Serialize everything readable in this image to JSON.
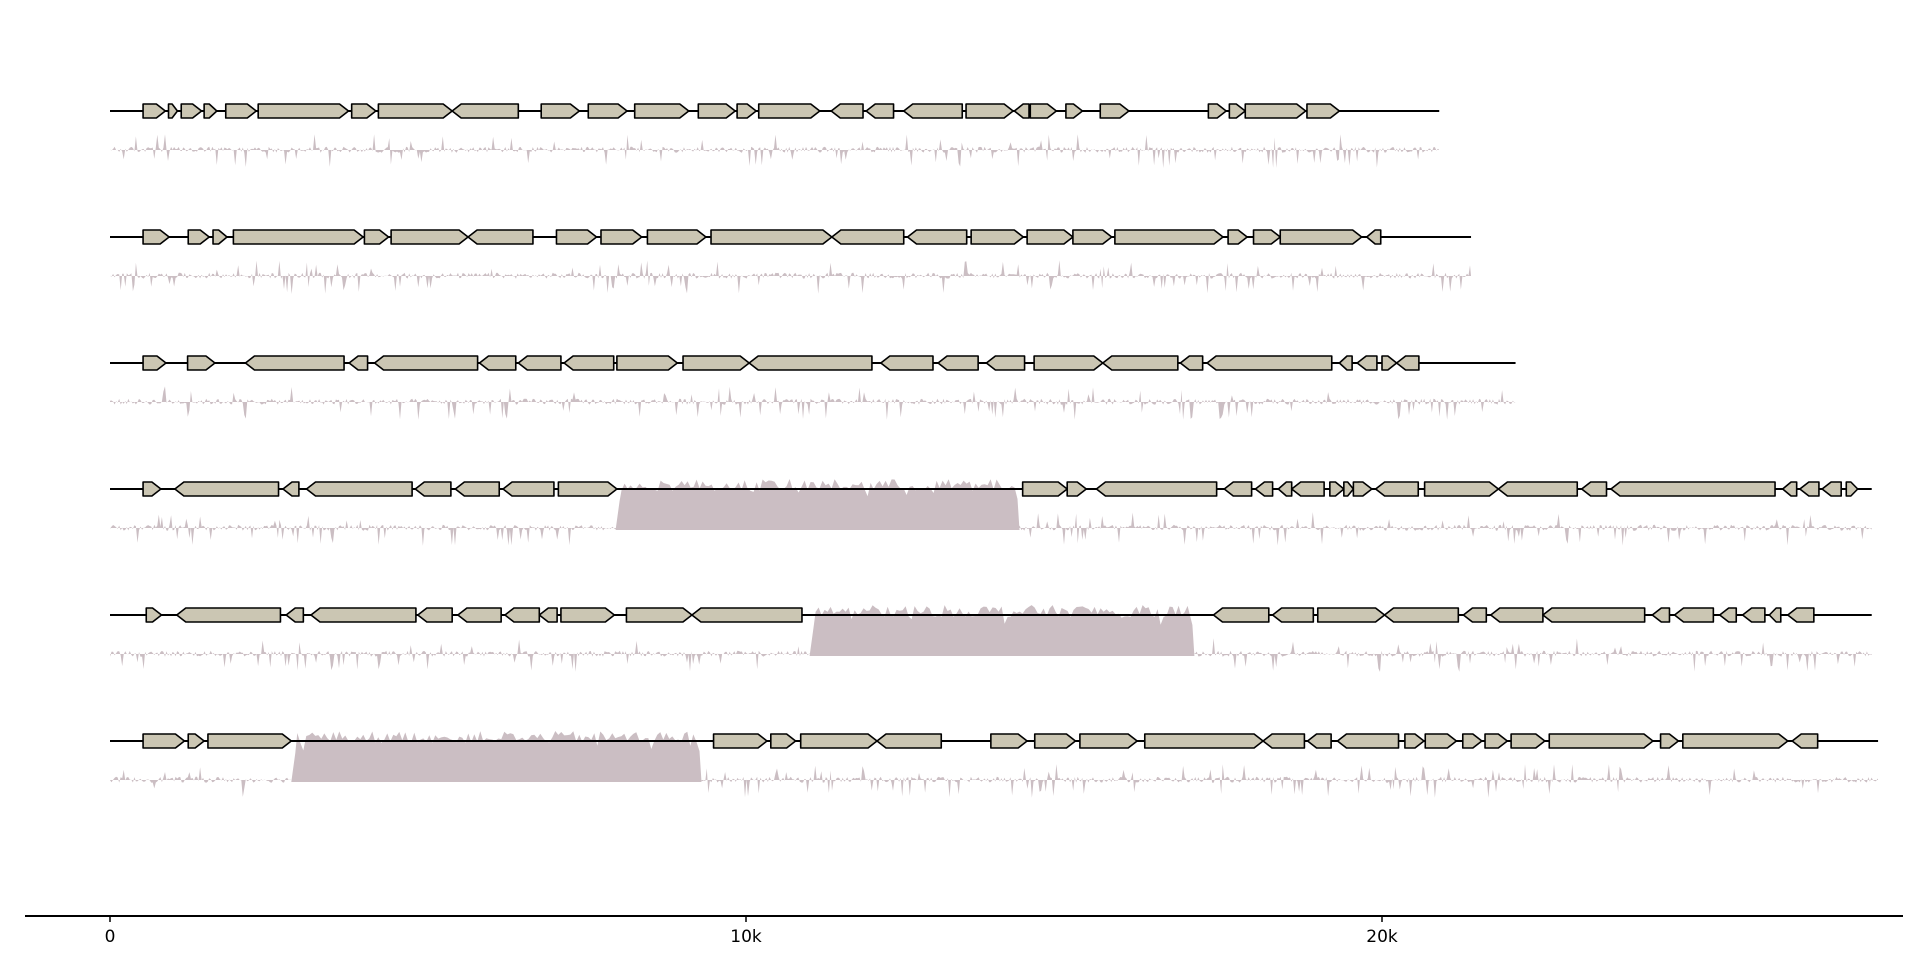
{
  "chart_data": {
    "type": "genome-map",
    "title": "",
    "xlabel": "",
    "ylabel": "",
    "xlim": [
      0,
      28500
    ],
    "x_ticks": [
      {
        "value": 0,
        "label": "0"
      },
      {
        "value": 10000,
        "label": "10k"
      },
      {
        "value": 20000,
        "label": "20k"
      }
    ],
    "colors": {
      "gene_fill": "#cbc6b3",
      "gene_stroke": "#000000",
      "track_fill": "#cbbec3",
      "axis": "#000000"
    },
    "records": [
      {
        "length": 20900,
        "genes": [
          [
            520,
            870,
            1
          ],
          [
            920,
            1060,
            1
          ],
          [
            1120,
            1440,
            1
          ],
          [
            1480,
            1680,
            1
          ],
          [
            1820,
            2300,
            1
          ],
          [
            2330,
            3750,
            1
          ],
          [
            3800,
            4180,
            1
          ],
          [
            4220,
            5380,
            1
          ],
          [
            5380,
            6420,
            -1
          ],
          [
            6780,
            7380,
            1
          ],
          [
            7520,
            8130,
            1
          ],
          [
            8250,
            9100,
            1
          ],
          [
            9250,
            9830,
            1
          ],
          [
            9860,
            10160,
            1
          ],
          [
            10200,
            11160,
            1
          ],
          [
            11340,
            11840,
            -1
          ],
          [
            11890,
            12320,
            -1
          ],
          [
            12480,
            13400,
            -1
          ],
          [
            13460,
            14200,
            1
          ],
          [
            14220,
            14450,
            -1
          ],
          [
            14470,
            14880,
            1
          ],
          [
            15030,
            15290,
            1
          ],
          [
            15570,
            16020,
            1
          ],
          [
            17270,
            17550,
            1
          ],
          [
            17600,
            17850,
            1
          ],
          [
            17850,
            18800,
            1
          ],
          [
            18820,
            19330,
            1
          ]
        ],
        "deep_blocks": []
      },
      {
        "length": 21400,
        "genes": [
          [
            520,
            930,
            1
          ],
          [
            1230,
            1560,
            1
          ],
          [
            1620,
            1840,
            1
          ],
          [
            1940,
            3980,
            1
          ],
          [
            4000,
            4380,
            1
          ],
          [
            4420,
            5630,
            1
          ],
          [
            5630,
            6650,
            -1
          ],
          [
            7020,
            7650,
            1
          ],
          [
            7720,
            8360,
            1
          ],
          [
            8450,
            9370,
            1
          ],
          [
            9450,
            11350,
            1
          ],
          [
            11350,
            12480,
            -1
          ],
          [
            12540,
            13470,
            -1
          ],
          [
            13540,
            14360,
            1
          ],
          [
            14420,
            15140,
            1
          ],
          [
            15140,
            15750,
            1
          ],
          [
            15800,
            17500,
            1
          ],
          [
            17580,
            17880,
            1
          ],
          [
            17980,
            18400,
            1
          ],
          [
            18400,
            19680,
            1
          ],
          [
            19760,
            19980,
            -1
          ]
        ],
        "deep_blocks": []
      },
      {
        "length": 22100,
        "genes": [
          [
            520,
            880,
            1
          ],
          [
            1220,
            1650,
            1
          ],
          [
            2130,
            3680,
            -1
          ],
          [
            3760,
            4050,
            -1
          ],
          [
            4160,
            5780,
            -1
          ],
          [
            5810,
            6380,
            -1
          ],
          [
            6420,
            7090,
            -1
          ],
          [
            7140,
            7920,
            -1
          ],
          [
            7970,
            8920,
            1
          ],
          [
            9010,
            10050,
            1
          ],
          [
            10050,
            11980,
            -1
          ],
          [
            12120,
            12940,
            -1
          ],
          [
            13020,
            13650,
            -1
          ],
          [
            13780,
            14380,
            -1
          ],
          [
            14530,
            15610,
            1
          ],
          [
            15610,
            16790,
            -1
          ],
          [
            16830,
            17180,
            -1
          ],
          [
            17250,
            19210,
            -1
          ],
          [
            19330,
            19530,
            -1
          ],
          [
            19610,
            19920,
            -1
          ],
          [
            20000,
            20230,
            1
          ],
          [
            20230,
            20580,
            -1
          ]
        ],
        "deep_blocks": []
      },
      {
        "length": 27700,
        "genes": [
          [
            520,
            800,
            1
          ],
          [
            1020,
            2650,
            -1
          ],
          [
            2720,
            2970,
            -1
          ],
          [
            3090,
            4750,
            -1
          ],
          [
            4800,
            5360,
            -1
          ],
          [
            5430,
            6120,
            -1
          ],
          [
            6180,
            6980,
            -1
          ],
          [
            7050,
            7970,
            1
          ],
          [
            14350,
            15050,
            1
          ],
          [
            15050,
            15350,
            1
          ],
          [
            15510,
            17400,
            -1
          ],
          [
            17520,
            17950,
            -1
          ],
          [
            18010,
            18280,
            -1
          ],
          [
            18370,
            18580,
            -1
          ],
          [
            18580,
            19090,
            -1
          ],
          [
            19180,
            19400,
            1
          ],
          [
            19400,
            19550,
            1
          ],
          [
            19550,
            19840,
            1
          ],
          [
            19900,
            20570,
            -1
          ],
          [
            20670,
            21830,
            1
          ],
          [
            21830,
            23070,
            -1
          ],
          [
            23140,
            23530,
            -1
          ],
          [
            23600,
            26180,
            -1
          ],
          [
            26300,
            26520,
            -1
          ],
          [
            26570,
            26870,
            -1
          ],
          [
            26920,
            27220,
            -1
          ],
          [
            27300,
            27480,
            1
          ]
        ],
        "deep_blocks": [
          [
            7950,
            14300
          ]
        ]
      },
      {
        "length": 27700,
        "genes": [
          [
            570,
            810,
            1
          ],
          [
            1050,
            2680,
            -1
          ],
          [
            2770,
            3040,
            -1
          ],
          [
            3160,
            4810,
            -1
          ],
          [
            4840,
            5380,
            -1
          ],
          [
            5470,
            6150,
            -1
          ],
          [
            6210,
            6750,
            -1
          ],
          [
            6750,
            7030,
            -1
          ],
          [
            7090,
            7930,
            1
          ],
          [
            8120,
            9150,
            1
          ],
          [
            9150,
            10880,
            -1
          ],
          [
            17350,
            18220,
            -1
          ],
          [
            18280,
            18920,
            -1
          ],
          [
            18990,
            20040,
            1
          ],
          [
            20040,
            21200,
            -1
          ],
          [
            21280,
            21640,
            -1
          ],
          [
            21710,
            22530,
            -1
          ],
          [
            22530,
            24130,
            -1
          ],
          [
            24250,
            24520,
            -1
          ],
          [
            24600,
            25210,
            -1
          ],
          [
            25310,
            25570,
            -1
          ],
          [
            25670,
            26020,
            -1
          ],
          [
            26090,
            26270,
            -1
          ],
          [
            26380,
            26790,
            -1
          ]
        ],
        "deep_blocks": [
          [
            11000,
            17050
          ]
        ]
      },
      {
        "length": 27800,
        "genes": [
          [
            520,
            1170,
            1
          ],
          [
            1230,
            1480,
            1
          ],
          [
            1540,
            2850,
            1
          ],
          [
            9490,
            10330,
            1
          ],
          [
            10390,
            10780,
            1
          ],
          [
            10860,
            12060,
            1
          ],
          [
            12060,
            13070,
            -1
          ],
          [
            13850,
            14420,
            1
          ],
          [
            14540,
            15180,
            1
          ],
          [
            15250,
            16150,
            1
          ],
          [
            16270,
            18130,
            1
          ],
          [
            18130,
            18780,
            -1
          ],
          [
            18830,
            19200,
            -1
          ],
          [
            19300,
            20260,
            -1
          ],
          [
            20360,
            20660,
            1
          ],
          [
            20680,
            21170,
            1
          ],
          [
            21270,
            21570,
            1
          ],
          [
            21620,
            21970,
            1
          ],
          [
            22030,
            22560,
            1
          ],
          [
            22630,
            24260,
            1
          ],
          [
            24380,
            24660,
            1
          ],
          [
            24730,
            26380,
            1
          ],
          [
            26450,
            26850,
            -1
          ]
        ],
        "deep_blocks": [
          [
            2850,
            9300
          ]
        ]
      }
    ]
  }
}
